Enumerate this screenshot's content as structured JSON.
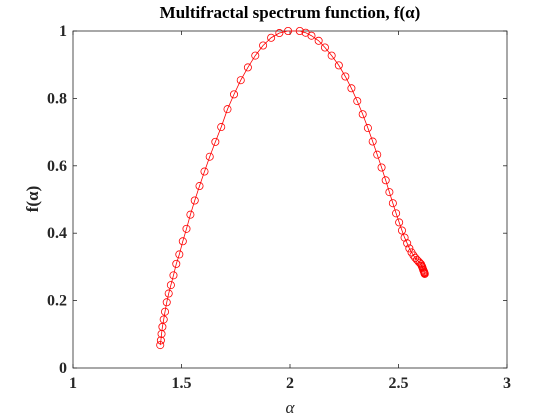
{
  "chart_data": {
    "type": "line",
    "title": "Multifractal spectrum function, f(α)",
    "xlabel": "α",
    "ylabel": "f(α)",
    "xlim": [
      1,
      3
    ],
    "ylim": [
      0,
      1
    ],
    "xticks": [
      "1",
      "1.5",
      "2",
      "2.5",
      "3"
    ],
    "yticks": [
      "0",
      "0.2",
      "0.4",
      "0.6",
      "0.8",
      "1"
    ],
    "grid": false,
    "line_color": "#ff0000",
    "marker": "circle-open",
    "series": [
      {
        "x": [
          1.402,
          1.405,
          1.408,
          1.412,
          1.418,
          1.424,
          1.432,
          1.441,
          1.451,
          1.463,
          1.476,
          1.49,
          1.506,
          1.523,
          1.541,
          1.561,
          1.583,
          1.606,
          1.63,
          1.656,
          1.683,
          1.712,
          1.742,
          1.773,
          1.806,
          1.84,
          1.876,
          1.913,
          1.951,
          1.991,
          2.045,
          2.072,
          2.099,
          2.132,
          2.161,
          2.192,
          2.225,
          2.255,
          2.283,
          2.31,
          2.335,
          2.359,
          2.381,
          2.402,
          2.422,
          2.441,
          2.458,
          2.474,
          2.489,
          2.503,
          2.516,
          2.528,
          2.54,
          2.55,
          2.56,
          2.569,
          2.577,
          2.585,
          2.592,
          2.598,
          2.604,
          2.607,
          2.61,
          2.612,
          2.614,
          2.616,
          2.618,
          2.619,
          2.62,
          2.621
        ],
        "y": [
          0.068,
          0.082,
          0.101,
          0.122,
          0.144,
          0.167,
          0.195,
          0.221,
          0.246,
          0.275,
          0.309,
          0.337,
          0.376,
          0.413,
          0.455,
          0.497,
          0.54,
          0.583,
          0.627,
          0.671,
          0.715,
          0.768,
          0.812,
          0.854,
          0.892,
          0.927,
          0.957,
          0.98,
          0.994,
          1.0,
          1.0,
          0.995,
          0.986,
          0.971,
          0.951,
          0.927,
          0.898,
          0.865,
          0.83,
          0.792,
          0.753,
          0.712,
          0.672,
          0.633,
          0.595,
          0.557,
          0.522,
          0.489,
          0.459,
          0.432,
          0.408,
          0.387,
          0.37,
          0.355,
          0.343,
          0.334,
          0.327,
          0.321,
          0.316,
          0.312,
          0.308,
          0.303,
          0.299,
          0.295,
          0.291,
          0.288,
          0.285,
          0.283,
          0.281,
          0.279
        ]
      }
    ]
  }
}
